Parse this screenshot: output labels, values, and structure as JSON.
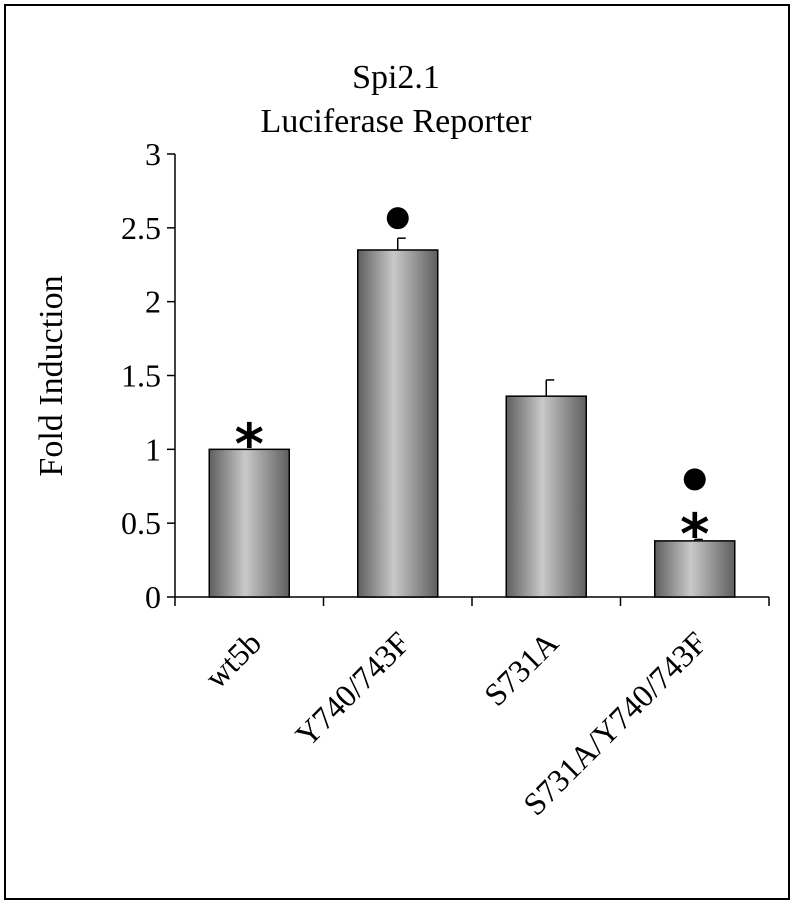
{
  "chart_data": {
    "type": "bar",
    "title": "Spi2.1",
    "subtitle": "Luciferase Reporter",
    "xlabel": "",
    "ylabel": "Fold Induction",
    "ylim": [
      0,
      3
    ],
    "yticks": [
      0,
      0.5,
      1,
      1.5,
      2,
      2.5,
      3
    ],
    "ytick_labels": [
      "0",
      "0.5",
      "1",
      "1.5",
      "2",
      "2.5",
      "3"
    ],
    "categories": [
      "wt5b",
      "Y740/743F",
      "S731A",
      "S731A/Y740/743F"
    ],
    "values": [
      1.0,
      2.35,
      1.36,
      0.38
    ],
    "errors": [
      0,
      0.08,
      0.11,
      0.01
    ],
    "annotations": [
      {
        "category": "wt5b",
        "marks": [
          "*"
        ]
      },
      {
        "category": "Y740/743F",
        "marks": [
          "●"
        ]
      },
      {
        "category": "S731A",
        "marks": []
      },
      {
        "category": "S731A/Y740/743F",
        "marks": [
          "●",
          "*"
        ]
      }
    ],
    "grid": false,
    "legend": "none"
  }
}
